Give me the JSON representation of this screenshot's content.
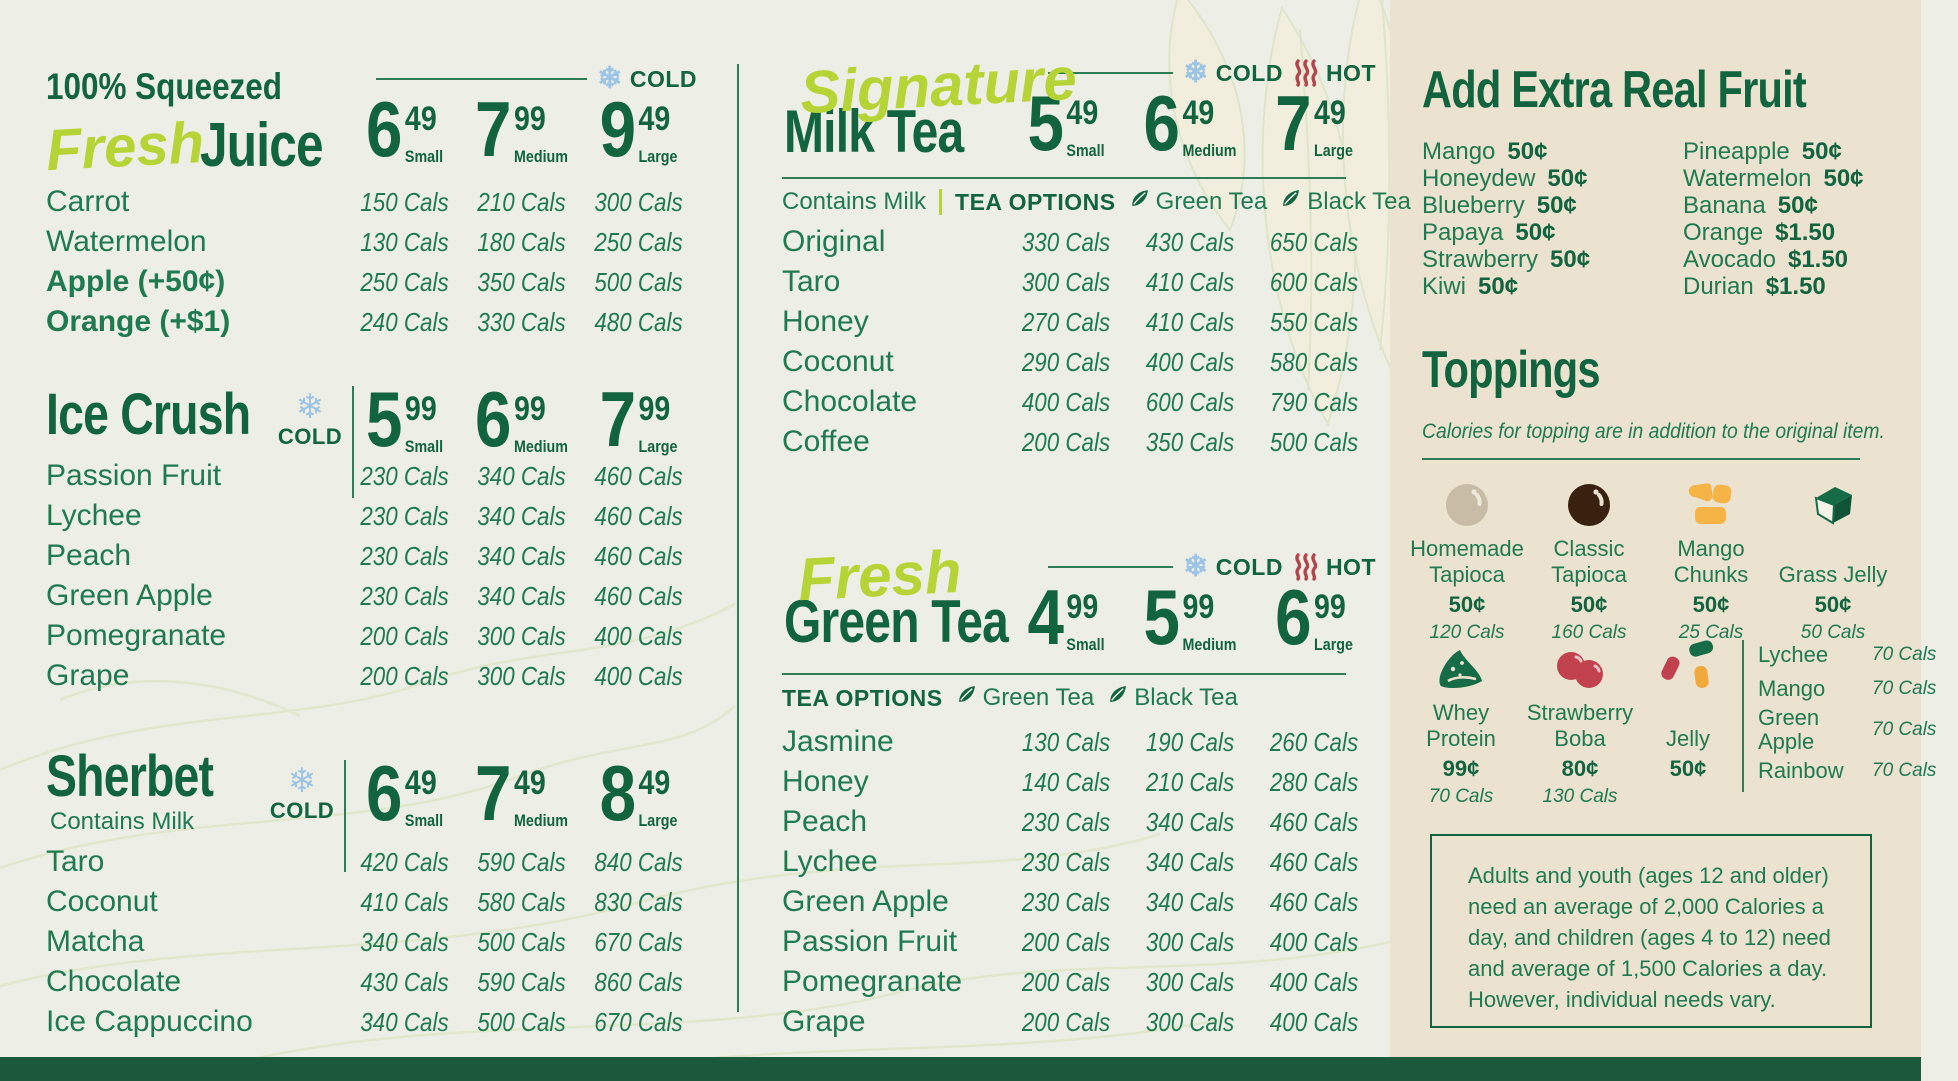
{
  "badges": {
    "cold": "COLD",
    "hot": "HOT"
  },
  "colors": {
    "accent_green": "#12643f",
    "item_green": "#1f7a50",
    "lime": "#b7d437",
    "cold_blue": "#9cc4e4",
    "hot_red": "#b0454c",
    "main_bg": "#edeee6",
    "sidebar_bg": "#ebe2d0",
    "footer_green": "#1a5a3b",
    "tapioca_tan": "#c9bca7",
    "tapioca_brown": "#38220f",
    "mango_orange": "#f5b445",
    "strawberry_red": "#c2414e",
    "jelly_orange": "#f2a93c"
  },
  "sections": {
    "juice": {
      "kicker": "100% Squeezed",
      "title_script": "Fresh",
      "title_rest": "Juice",
      "prices": [
        {
          "dollars": "6",
          "cents": "49",
          "size": "Small"
        },
        {
          "dollars": "7",
          "cents": "99",
          "size": "Medium"
        },
        {
          "dollars": "9",
          "cents": "49",
          "size": "Large"
        }
      ],
      "items": [
        {
          "name": "Carrot",
          "bold": false,
          "cals": [
            "150 Cals",
            "210 Cals",
            "300 Cals"
          ]
        },
        {
          "name": "Watermelon",
          "bold": false,
          "cals": [
            "130 Cals",
            "180 Cals",
            "250 Cals"
          ]
        },
        {
          "name": "Apple (+50¢)",
          "bold": true,
          "cals": [
            "250 Cals",
            "350 Cals",
            "500 Cals"
          ]
        },
        {
          "name": "Orange (+$1)",
          "bold": true,
          "cals": [
            "240 Cals",
            "330 Cals",
            "480 Cals"
          ]
        }
      ]
    },
    "ice_crush": {
      "title": "Ice Crush",
      "prices": [
        {
          "dollars": "5",
          "cents": "99",
          "size": "Small"
        },
        {
          "dollars": "6",
          "cents": "99",
          "size": "Medium"
        },
        {
          "dollars": "7",
          "cents": "99",
          "size": "Large"
        }
      ],
      "items": [
        {
          "name": "Passion Fruit",
          "bold": false,
          "cals": [
            "230 Cals",
            "340 Cals",
            "460 Cals"
          ]
        },
        {
          "name": "Lychee",
          "bold": false,
          "cals": [
            "230 Cals",
            "340 Cals",
            "460 Cals"
          ]
        },
        {
          "name": "Peach",
          "bold": false,
          "cals": [
            "230 Cals",
            "340 Cals",
            "460 Cals"
          ]
        },
        {
          "name": "Green Apple",
          "bold": false,
          "cals": [
            "230 Cals",
            "340 Cals",
            "460 Cals"
          ]
        },
        {
          "name": "Pomegranate",
          "bold": false,
          "cals": [
            "200 Cals",
            "300 Cals",
            "400 Cals"
          ]
        },
        {
          "name": "Grape",
          "bold": false,
          "cals": [
            "200 Cals",
            "300 Cals",
            "400 Cals"
          ]
        }
      ]
    },
    "sherbet": {
      "title": "Sherbet",
      "subtitle": "Contains Milk",
      "prices": [
        {
          "dollars": "6",
          "cents": "49",
          "size": "Small"
        },
        {
          "dollars": "7",
          "cents": "49",
          "size": "Medium"
        },
        {
          "dollars": "8",
          "cents": "49",
          "size": "Large"
        }
      ],
      "items": [
        {
          "name": "Taro",
          "bold": false,
          "cals": [
            "420 Cals",
            "590 Cals",
            "840 Cals"
          ]
        },
        {
          "name": "Coconut",
          "bold": false,
          "cals": [
            "410 Cals",
            "580 Cals",
            "830 Cals"
          ]
        },
        {
          "name": "Matcha",
          "bold": false,
          "cals": [
            "340 Cals",
            "500 Cals",
            "670 Cals"
          ]
        },
        {
          "name": "Chocolate",
          "bold": false,
          "cals": [
            "430 Cals",
            "590 Cals",
            "860 Cals"
          ]
        },
        {
          "name": "Ice Cappuccino",
          "bold": false,
          "cals": [
            "340 Cals",
            "500 Cals",
            "670 Cals"
          ]
        }
      ]
    },
    "milk_tea": {
      "title_script": "Signature",
      "title_rest": "Milk Tea",
      "contains_milk": "Contains Milk",
      "tea_options_label": "TEA OPTIONS",
      "tea_options": [
        "Green Tea",
        "Black Tea"
      ],
      "prices": [
        {
          "dollars": "5",
          "cents": "49",
          "size": "Small"
        },
        {
          "dollars": "6",
          "cents": "49",
          "size": "Medium"
        },
        {
          "dollars": "7",
          "cents": "49",
          "size": "Large"
        }
      ],
      "items": [
        {
          "name": "Original",
          "bold": false,
          "cals": [
            "330 Cals",
            "430 Cals",
            "650 Cals"
          ]
        },
        {
          "name": "Taro",
          "bold": false,
          "cals": [
            "300 Cals",
            "410 Cals",
            "600 Cals"
          ]
        },
        {
          "name": "Honey",
          "bold": false,
          "cals": [
            "270 Cals",
            "410 Cals",
            "550 Cals"
          ]
        },
        {
          "name": "Coconut",
          "bold": false,
          "cals": [
            "290 Cals",
            "400 Cals",
            "580 Cals"
          ]
        },
        {
          "name": "Chocolate",
          "bold": false,
          "cals": [
            "400 Cals",
            "600 Cals",
            "790 Cals"
          ]
        },
        {
          "name": "Coffee",
          "bold": false,
          "cals": [
            "200 Cals",
            "350 Cals",
            "500 Cals"
          ]
        }
      ]
    },
    "green_tea": {
      "title_script": "Fresh",
      "title_rest": "Green Tea",
      "tea_options_label": "TEA OPTIONS",
      "tea_options": [
        "Green Tea",
        "Black Tea"
      ],
      "prices": [
        {
          "dollars": "4",
          "cents": "99",
          "size": "Small"
        },
        {
          "dollars": "5",
          "cents": "99",
          "size": "Medium"
        },
        {
          "dollars": "6",
          "cents": "99",
          "size": "Large"
        }
      ],
      "items": [
        {
          "name": "Jasmine",
          "bold": false,
          "cals": [
            "130 Cals",
            "190 Cals",
            "260 Cals"
          ]
        },
        {
          "name": "Honey",
          "bold": false,
          "cals": [
            "140 Cals",
            "210 Cals",
            "280 Cals"
          ]
        },
        {
          "name": "Peach",
          "bold": false,
          "cals": [
            "230 Cals",
            "340 Cals",
            "460 Cals"
          ]
        },
        {
          "name": "Lychee",
          "bold": false,
          "cals": [
            "230 Cals",
            "340 Cals",
            "460 Cals"
          ]
        },
        {
          "name": "Green Apple",
          "bold": false,
          "cals": [
            "230 Cals",
            "340 Cals",
            "460 Cals"
          ]
        },
        {
          "name": "Passion Fruit",
          "bold": false,
          "cals": [
            "200 Cals",
            "300 Cals",
            "400 Cals"
          ]
        },
        {
          "name": "Pomegranate",
          "bold": false,
          "cals": [
            "200 Cals",
            "300 Cals",
            "400 Cals"
          ]
        },
        {
          "name": "Grape",
          "bold": false,
          "cals": [
            "200 Cals",
            "300 Cals",
            "400 Cals"
          ]
        }
      ]
    }
  },
  "sidebar": {
    "fruit": {
      "title": "Add Extra Real Fruit",
      "col1": [
        {
          "name": "Mango",
          "price": "50¢"
        },
        {
          "name": "Honeydew",
          "price": "50¢"
        },
        {
          "name": "Blueberry",
          "price": "50¢"
        },
        {
          "name": "Papaya",
          "price": "50¢"
        },
        {
          "name": "Strawberry",
          "price": "50¢"
        },
        {
          "name": "Kiwi",
          "price": "50¢"
        }
      ],
      "col2": [
        {
          "name": "Pineapple",
          "price": "50¢"
        },
        {
          "name": "Watermelon",
          "price": "50¢"
        },
        {
          "name": "Banana",
          "price": "50¢"
        },
        {
          "name": "Orange",
          "price": "$1.50"
        },
        {
          "name": "Avocado",
          "price": "$1.50"
        },
        {
          "name": "Durian",
          "price": "$1.50"
        }
      ]
    },
    "toppings": {
      "title": "Toppings",
      "note": "Calories for topping are in addition to the original item.",
      "row1": [
        {
          "name": "Homemade Tapioca",
          "price": "50¢",
          "cals": "120 Cals",
          "icon": "tapioca-tan"
        },
        {
          "name": "Classic Tapioca",
          "price": "50¢",
          "cals": "160 Cals",
          "icon": "tapioca-brown"
        },
        {
          "name": "Mango Chunks",
          "price": "50¢",
          "cals": "25 Cals",
          "icon": "mango-chunks"
        },
        {
          "name": "Grass Jelly",
          "price": "50¢",
          "cals": "50 Cals",
          "icon": "grass-jelly"
        }
      ],
      "row2": [
        {
          "name": "Whey Protein",
          "price": "99¢",
          "cals": "70 Cals",
          "icon": "whey-protein"
        },
        {
          "name": "Strawberry Boba",
          "price": "80¢",
          "cals": "130 Cals",
          "icon": "strawberry-boba"
        },
        {
          "name": "Jelly",
          "price": "50¢",
          "icon": "jelly"
        }
      ],
      "jelly_flavors": [
        {
          "name": "Lychee",
          "cals": "70 Cals"
        },
        {
          "name": "Mango",
          "cals": "70 Cals"
        },
        {
          "name": "Green Apple",
          "cals": "70 Cals"
        },
        {
          "name": "Rainbow",
          "cals": "70 Cals"
        }
      ]
    },
    "notice": "Adults and youth (ages 12 and older) need an average of 2,000 Calories a day, and children (ages 4 to 12) need and average of 1,500 Calories a day. However, individual needs vary."
  }
}
